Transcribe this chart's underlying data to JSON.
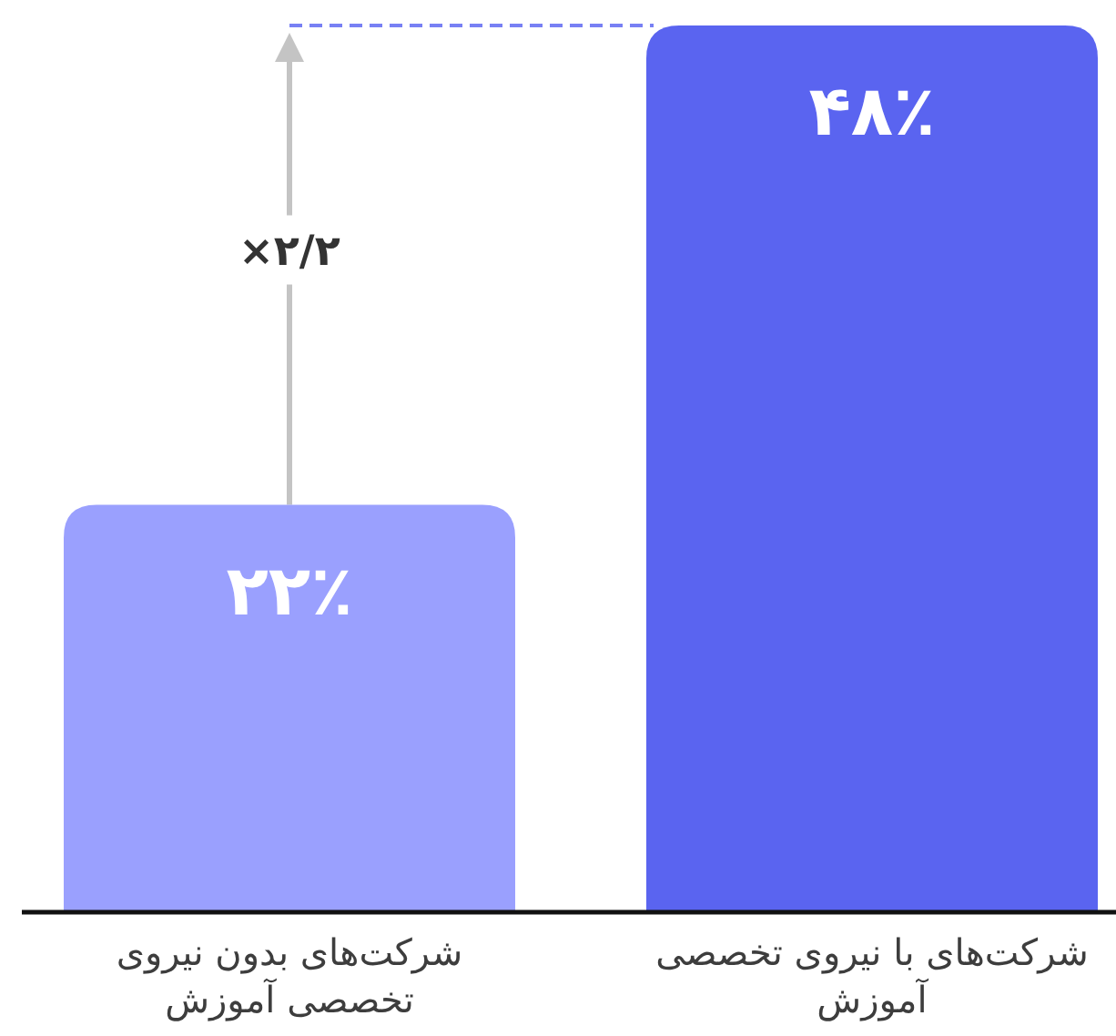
{
  "chart_data": {
    "type": "bar",
    "categories": [
      "شرکت‌های بدون نیروی تخصصی آموزش",
      "شرکت‌های با نیروی تخصصی آموزش"
    ],
    "values": [
      22,
      48
    ],
    "colors": [
      "#9aa0fe",
      "#5a64f0"
    ],
    "value_labels": [
      "۲۲٪",
      "۴۸٪"
    ],
    "annotations": [
      "×۲/۲"
    ],
    "ref_lines": [
      {
        "axis": "y",
        "value": 48,
        "color": "#7880f4",
        "line_style": "dashed"
      }
    ]
  }
}
